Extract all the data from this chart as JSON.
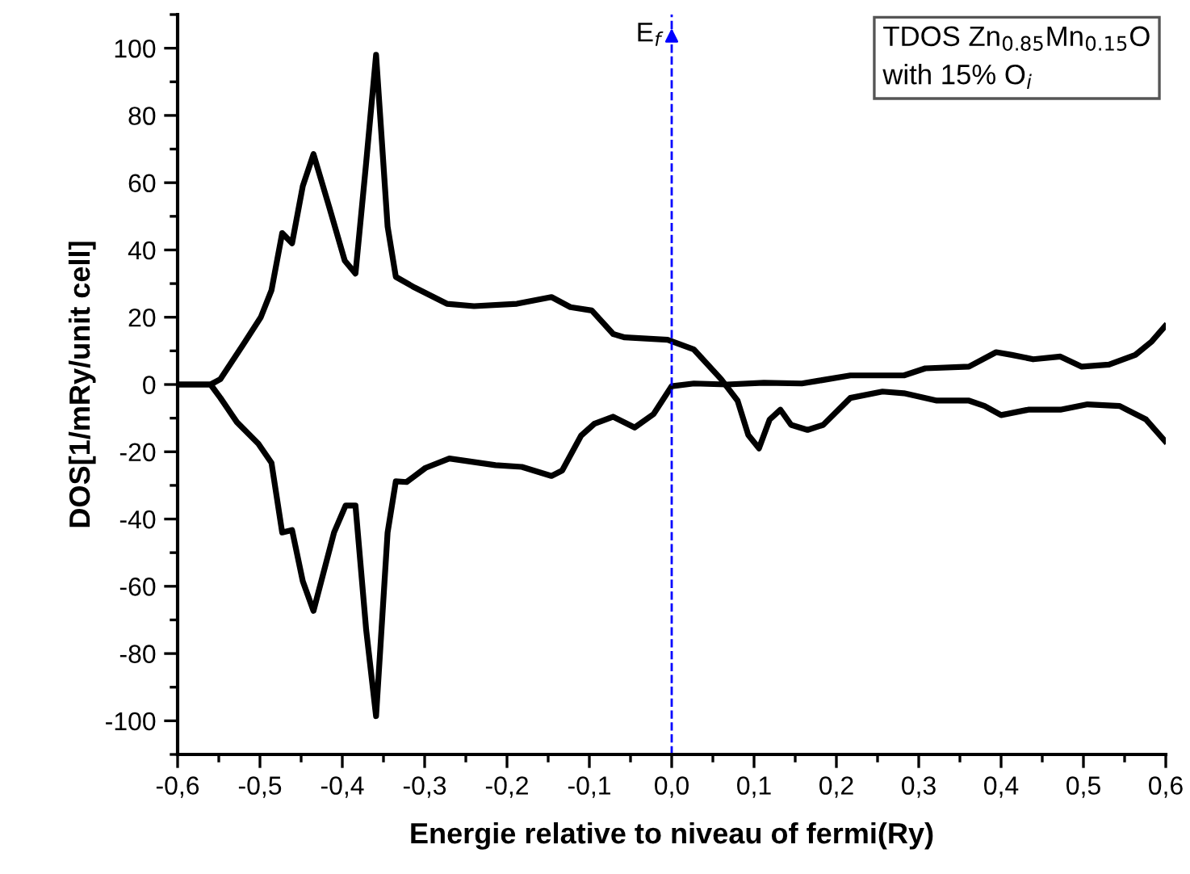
{
  "chart_data": {
    "type": "line",
    "xlabel": "Energie relative to niveau of fermi(Ry)",
    "ylabel": "DOS[1/mRy/unit cell]",
    "xlim": [
      -0.6,
      0.6
    ],
    "xticks": [
      {
        "value": -0.6,
        "label": "-0,6"
      },
      {
        "value": -0.5,
        "label": "-0,5"
      },
      {
        "value": -0.4,
        "label": "-0,4"
      },
      {
        "value": -0.3,
        "label": "-0,3"
      },
      {
        "value": -0.2,
        "label": "-0,2"
      },
      {
        "value": -0.1,
        "label": "-0,1"
      },
      {
        "value": 0.0,
        "label": "0,0"
      },
      {
        "value": 0.1,
        "label": "0,1"
      },
      {
        "value": 0.2,
        "label": "0,2"
      },
      {
        "value": 0.3,
        "label": "0,3"
      },
      {
        "value": 0.4,
        "label": "0,4"
      },
      {
        "value": 0.5,
        "label": "0,5"
      },
      {
        "value": 0.6,
        "label": "0,6"
      }
    ],
    "ylim": [
      -110,
      110
    ],
    "yticks": [
      -100,
      -80,
      -60,
      -40,
      -20,
      0,
      20,
      40,
      60,
      80,
      100
    ],
    "grid": false,
    "legend": false,
    "marker": "none",
    "line_style": "solid",
    "annotations": [
      "TDOS Zn$_{0.85}$Mn$_{0.15}$O\nwith 15% O$_{i}$"
    ],
    "ref_lines": [
      {
        "axis": "x",
        "value": 0.0,
        "label": "E$_{f}$",
        "color": "#0000ff",
        "line_style": "dashed"
      }
    ],
    "series": [
      {
        "color": "#000000",
        "x": [
          -0.6,
          -0.56,
          -0.548,
          -0.52,
          -0.499,
          -0.486,
          -0.473,
          -0.461,
          -0.448,
          -0.435,
          -0.417,
          -0.397,
          -0.384,
          -0.371,
          -0.359,
          -0.345,
          -0.335,
          -0.312,
          -0.273,
          -0.24,
          -0.188,
          -0.146,
          -0.123,
          -0.097,
          -0.071,
          -0.057,
          -0.005,
          0.027,
          0.06,
          0.08,
          0.093,
          0.106,
          0.119,
          0.132,
          0.145,
          0.165,
          0.184,
          0.217,
          0.256,
          0.282,
          0.322,
          0.361,
          0.38,
          0.4,
          0.433,
          0.472,
          0.505,
          0.544,
          0.576,
          0.599
        ],
        "values": [
          0,
          0,
          1.6,
          12,
          20,
          28,
          45,
          42,
          59,
          68.5,
          53.7,
          36.8,
          33,
          66,
          98,
          47,
          32,
          28.8,
          24,
          23.3,
          24,
          26,
          23,
          22,
          15,
          14,
          13.3,
          10.4,
          1.6,
          -4.8,
          -15,
          -19,
          -10.4,
          -7.5,
          -12,
          -13.5,
          -12,
          -4,
          -2.1,
          -2.6,
          -4.8,
          -4.8,
          -6.4,
          -9.1,
          -7.5,
          -7.5,
          -5.9,
          -6.4,
          -10.4,
          -16.8
        ]
      },
      {
        "color": "#000000",
        "x": [
          -0.6,
          -0.56,
          -0.548,
          -0.528,
          -0.502,
          -0.486,
          -0.473,
          -0.461,
          -0.448,
          -0.435,
          -0.41,
          -0.396,
          -0.384,
          -0.371,
          -0.359,
          -0.345,
          -0.335,
          -0.322,
          -0.299,
          -0.27,
          -0.214,
          -0.182,
          -0.146,
          -0.133,
          -0.11,
          -0.094,
          -0.071,
          -0.045,
          -0.022,
          0.0,
          0.027,
          0.067,
          0.112,
          0.158,
          0.178,
          0.217,
          0.282,
          0.308,
          0.361,
          0.394,
          0.413,
          0.439,
          0.472,
          0.498,
          0.531,
          0.563,
          0.583,
          0.599
        ],
        "values": [
          0,
          0,
          -4,
          -11.2,
          -17.6,
          -23.3,
          -44,
          -43.3,
          -58.5,
          -67.3,
          -44,
          -36,
          -36,
          -73,
          -98.6,
          -44,
          -28.8,
          -29,
          -24.8,
          -22,
          -24,
          -24.5,
          -27.2,
          -25.6,
          -15.2,
          -11.7,
          -9.6,
          -12.8,
          -8.8,
          -0.5,
          0.3,
          0,
          0.5,
          0.3,
          1.1,
          2.7,
          2.7,
          4.8,
          5.3,
          9.6,
          8.8,
          7.5,
          8.3,
          5.3,
          5.9,
          8.8,
          12.8,
          17.3
        ]
      }
    ]
  }
}
